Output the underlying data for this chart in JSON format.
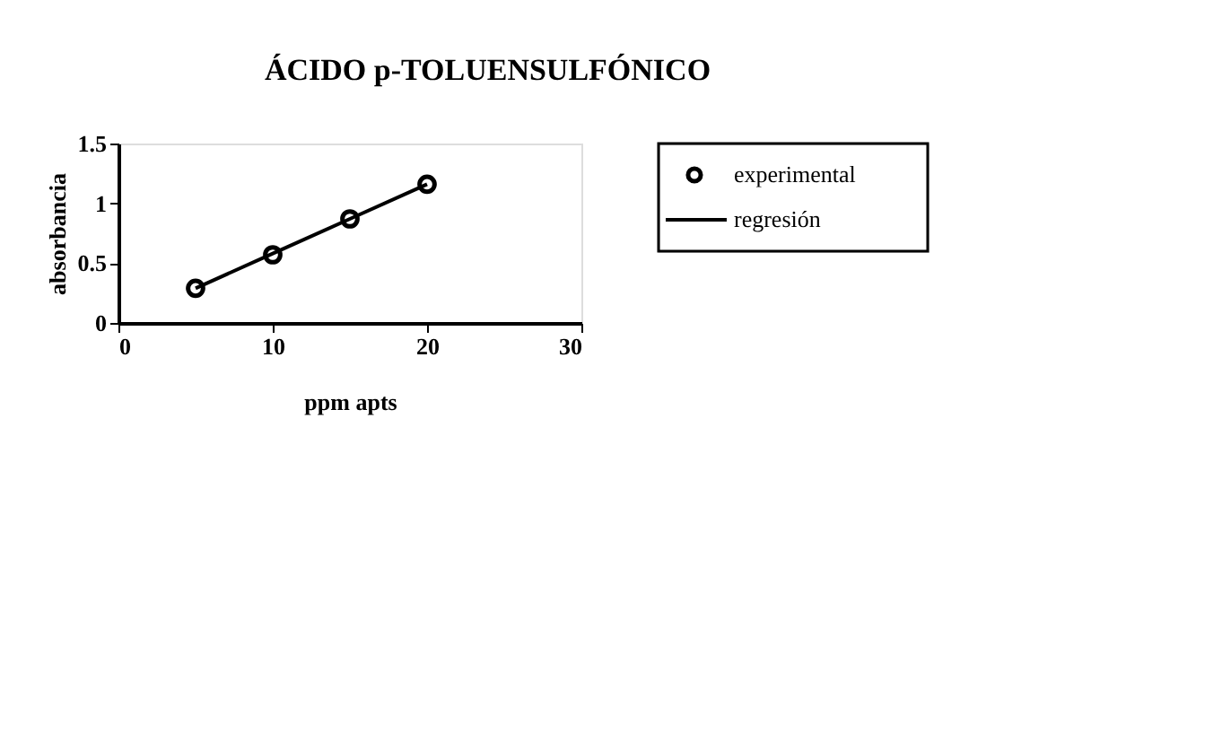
{
  "chart_data": {
    "type": "scatter",
    "title": "ÁCIDO p-TOLUENSULFÓNICO",
    "xlabel": "ppm apts",
    "ylabel": "absorbancia",
    "x": [
      5,
      10,
      15,
      20
    ],
    "series": [
      {
        "name": "experimental",
        "color": "#000000",
        "marker": "circle",
        "values": [
          0.29,
          0.57,
          0.87,
          1.16
        ]
      },
      {
        "name": "regresión",
        "type": "line",
        "color": "#000000",
        "marker": "none",
        "line_style": "solid",
        "values": [
          0.29,
          0.58,
          0.87,
          1.16
        ]
      }
    ],
    "xlim": [
      0,
      30
    ],
    "xticks": [
      0,
      10,
      20,
      30
    ],
    "ylim": [
      0,
      1.5
    ],
    "yticks": [
      0,
      0.5,
      1,
      1.5
    ],
    "grid": false,
    "legend": "right"
  }
}
